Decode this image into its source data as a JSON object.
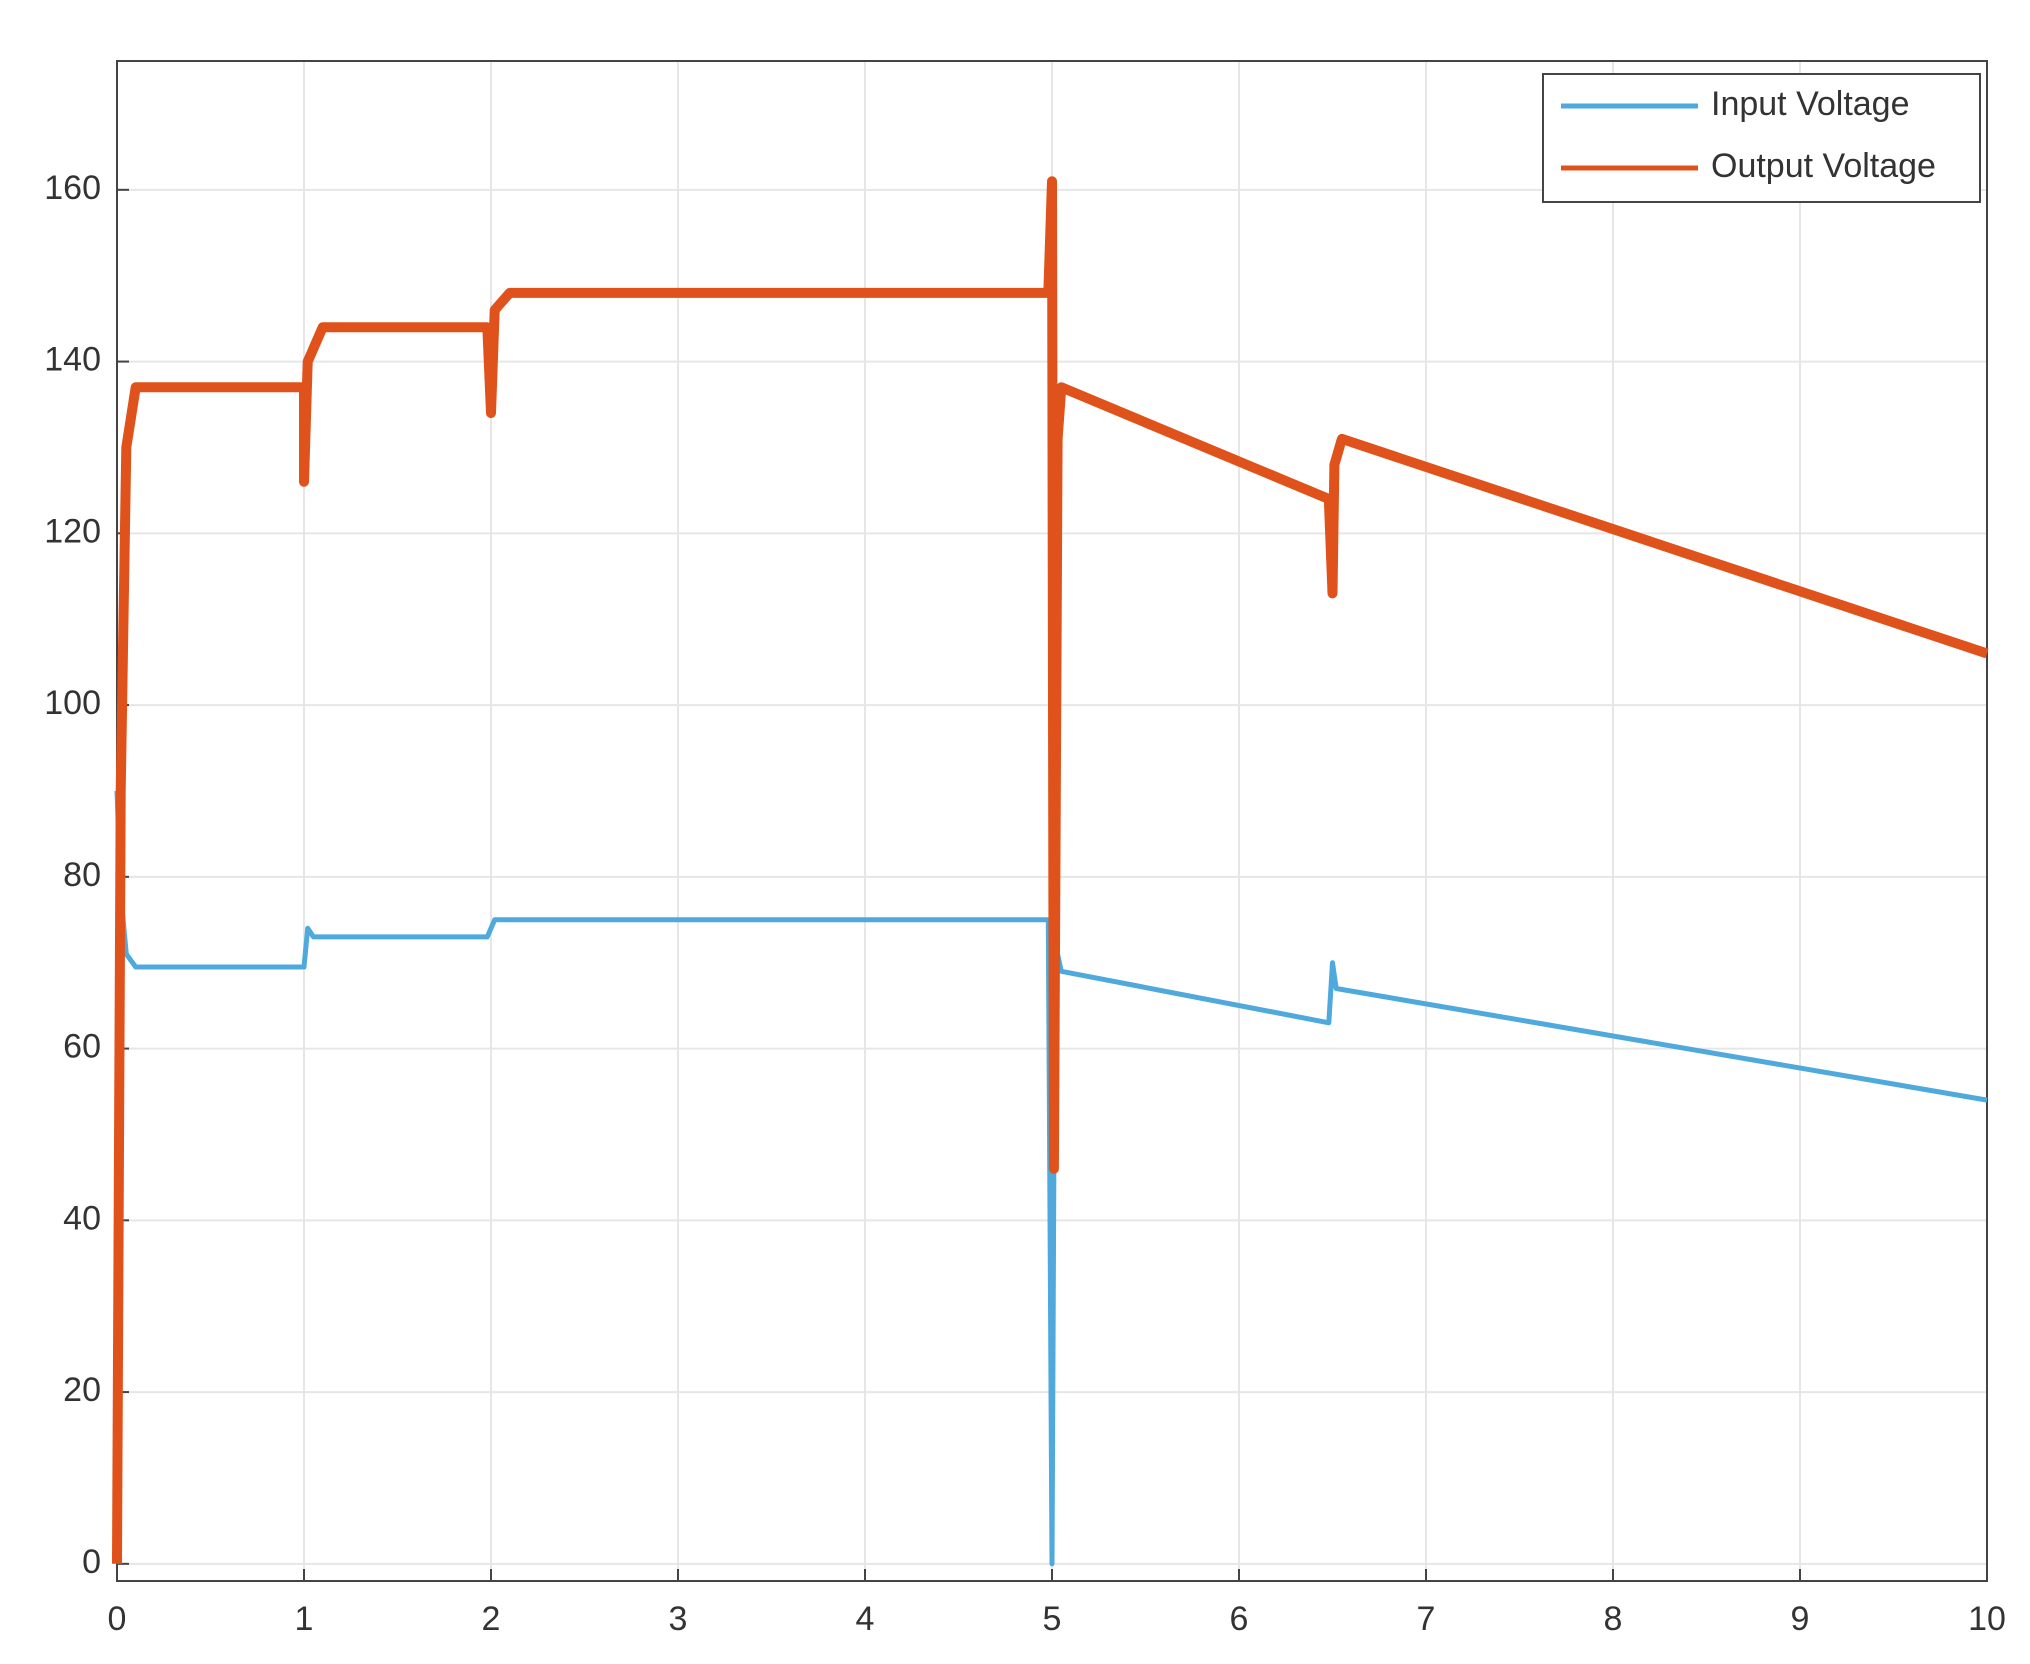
{
  "chart_data": {
    "type": "line",
    "xlim": [
      0,
      10
    ],
    "ylim": [
      -2,
      175
    ],
    "xticks": [
      0,
      1,
      2,
      3,
      4,
      5,
      6,
      7,
      8,
      9,
      10
    ],
    "yticks": [
      0,
      20,
      40,
      60,
      80,
      100,
      120,
      140,
      160
    ],
    "grid": true,
    "legend": "top-right",
    "series": [
      {
        "name": "Input Voltage",
        "color": "#4fa9dd",
        "x": [
          0,
          0.02,
          0.05,
          0.1,
          1.0,
          1.02,
          1.05,
          1.98,
          2.02,
          4.98,
          5.0,
          5.01,
          5.02,
          5.05,
          6.48,
          6.5,
          6.52,
          10
        ],
        "values": [
          90,
          78,
          71,
          69.5,
          69.5,
          74,
          73,
          73,
          75,
          75,
          0,
          47,
          72,
          69,
          63,
          70,
          67,
          54
        ]
      },
      {
        "name": "Output Voltage",
        "color": "#e0521b",
        "x": [
          0,
          0.02,
          0.05,
          0.1,
          1.0,
          1.0,
          1.02,
          1.1,
          1.98,
          2.0,
          2.02,
          2.1,
          4.98,
          5.0,
          5.01,
          5.03,
          5.05,
          6.48,
          6.5,
          6.51,
          6.55,
          10
        ],
        "values": [
          0,
          90,
          130,
          137,
          137,
          126,
          140,
          144,
          144,
          134,
          146,
          148,
          148,
          161,
          46,
          131,
          137,
          124,
          113,
          128,
          131,
          106
        ]
      }
    ]
  }
}
